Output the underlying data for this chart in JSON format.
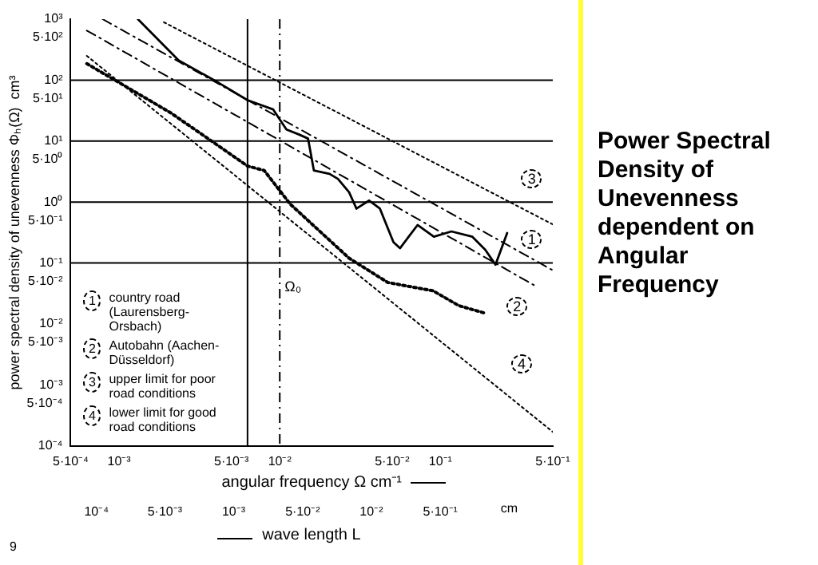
{
  "chart_data": {
    "type": "line",
    "title": "Power Spectral Density of Unevenness dependent on Angular Frequency",
    "xlabel": "angular frequency Ω cm⁻¹",
    "ylabel": "power spectral density of unevenness Φₕ(Ω)  cm³",
    "x2label": "wave length L",
    "log": "xy",
    "xlim": [
      0.0005,
      0.5
    ],
    "xticks": [
      {
        "value": 0.0005,
        "label": "5·10⁻⁴"
      },
      {
        "value": 0.001,
        "label": "10⁻³"
      },
      {
        "value": 0.005,
        "label": "5·10⁻³"
      },
      {
        "value": 0.01,
        "label": "10⁻²"
      },
      {
        "value": 0.05,
        "label": "5·10⁻²"
      },
      {
        "value": 0.1,
        "label": "10⁻¹"
      },
      {
        "value": 0.5,
        "label": "5·10⁻¹"
      }
    ],
    "ylim": [
      0.0001,
      1000
    ],
    "yticks": [
      {
        "value": 0.0001,
        "label": "10⁻⁴"
      },
      {
        "value": 0.0005,
        "label": "5·10⁻⁴"
      },
      {
        "value": 0.001,
        "label": "10⁻³"
      },
      {
        "value": 0.005,
        "label": "5·10⁻³"
      },
      {
        "value": 0.01,
        "label": "10⁻²"
      },
      {
        "value": 0.05,
        "label": "5·10⁻²"
      },
      {
        "value": 0.1,
        "label": "10⁻¹"
      },
      {
        "value": 0.5,
        "label": "5·10⁻¹"
      },
      {
        "value": 1,
        "label": "10⁰"
      },
      {
        "value": 5,
        "label": "5·10⁰"
      },
      {
        "value": 10,
        "label": "10¹"
      },
      {
        "value": 50,
        "label": "5·10¹"
      },
      {
        "value": 100,
        "label": "10²"
      },
      {
        "value": 500,
        "label": "5·10²"
      },
      {
        "value": 1000,
        "label": "10³"
      }
    ],
    "grid": false,
    "legend": "bottom left",
    "marker": "none",
    "series": [
      {
        "name": "country road (Laurensberg-Orsbach)",
        "color": "#000000",
        "line_style": "solid",
        "x": [
          0.00131,
          0.00235,
          0.0039,
          0.0063,
          0.0091,
          0.011,
          0.0132,
          0.015,
          0.0163,
          0.0204,
          0.023,
          0.027,
          0.03,
          0.036,
          0.042,
          0.051,
          0.056,
          0.072,
          0.091,
          0.117,
          0.158,
          0.19,
          0.22,
          0.26
        ],
        "values": [
          1000,
          210,
          100,
          47,
          33,
          15.5,
          12.8,
          11,
          3.3,
          2.9,
          2.4,
          1.45,
          0.78,
          1.06,
          0.78,
          0.22,
          0.175,
          0.42,
          0.27,
          0.33,
          0.27,
          0.165,
          0.094,
          0.31
        ]
      },
      {
        "name": "Autobahn (Aachen- Düsseldorf)",
        "color": "#000000",
        "line_style": "dotted",
        "x": [
          0.00063,
          0.0021,
          0.0063,
          0.008,
          0.0116,
          0.027,
          0.047,
          0.09,
          0.13,
          0.19
        ],
        "values": [
          186,
          29,
          3.9,
          3.3,
          0.93,
          0.12,
          0.048,
          0.035,
          0.02,
          0.015
        ]
      },
      {
        "name": "upper limit for poor road conditions",
        "color": "#000000",
        "line_style": "dotted",
        "x": [
          0.0019,
          0.5
        ],
        "values": [
          890,
          0.43
        ]
      },
      {
        "name": "lower limit for good road conditions",
        "color": "#000000",
        "line_style": "dotted",
        "x": [
          0.00063,
          0.5
        ],
        "values": [
          250,
          0.00017
        ]
      },
      {
        "color": "#000000",
        "line_style": "dashed",
        "x": [
          0.00079,
          0.5
        ],
        "values": [
          1000,
          0.076
        ]
      },
      {
        "color": "#000000",
        "line_style": "dashed",
        "x": [
          0.00063,
          0.39
        ],
        "values": [
          650,
          0.042
        ]
      }
    ],
    "ref_lines": [
      {
        "axis": "y",
        "value": 100,
        "label": null,
        "line_style": "solid"
      },
      {
        "axis": "y",
        "value": 10,
        "label": null,
        "line_style": "solid"
      },
      {
        "axis": "y",
        "value": 1,
        "label": null,
        "line_style": "solid"
      },
      {
        "axis": "y",
        "value": 0.1,
        "label": null,
        "line_style": "solid"
      },
      {
        "axis": "x",
        "value": 0.0063,
        "label": null,
        "line_style": "solid"
      },
      {
        "axis": "x",
        "value": 0.01,
        "label": "Ω₀",
        "line_style": "dashed"
      }
    ],
    "annotations": [
      {
        "text": "1",
        "x": 0.37,
        "y": 0.24
      },
      {
        "text": "2",
        "x": 0.3,
        "y": 0.02
      },
      {
        "text": "3",
        "x": 0.37,
        "y": 2.4
      },
      {
        "text": "4",
        "x": 0.32,
        "y": 0.0022
      },
      "10⁻⁴",
      "5·10⁻³",
      "10⁻³",
      "5·10⁻²",
      "10⁻²",
      "5·10⁻¹",
      "cm",
      "9"
    ]
  }
}
